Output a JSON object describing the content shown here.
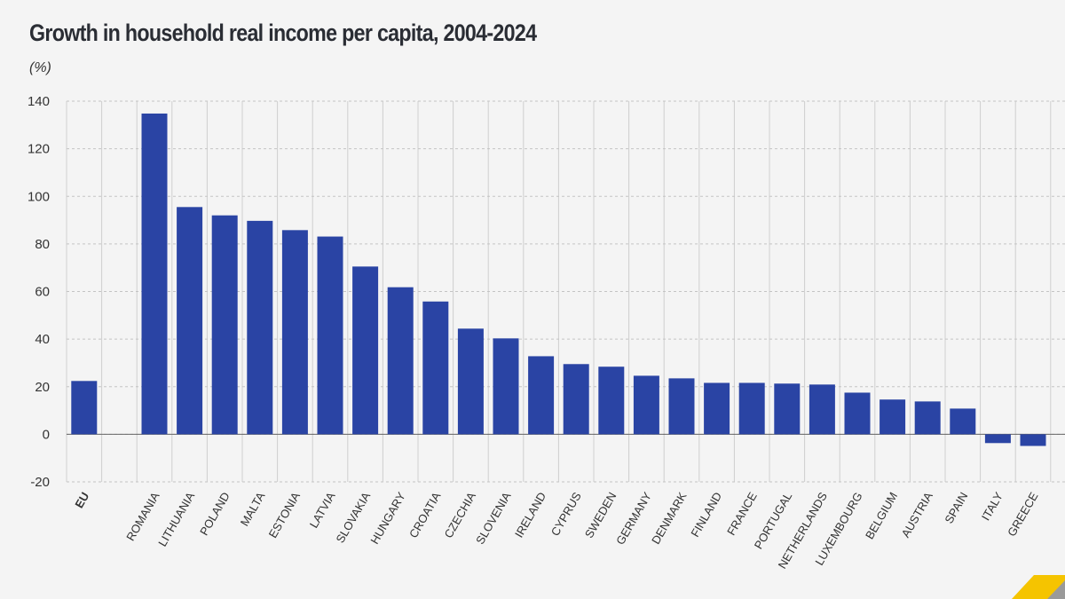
{
  "chart_data": {
    "type": "bar",
    "title": "Growth in household real income per capita, 2004-2024",
    "ylabel": "(%)",
    "xlabel": "",
    "ylim": [
      -20,
      140
    ],
    "yticks": [
      -20,
      0,
      20,
      40,
      60,
      80,
      100,
      120,
      140
    ],
    "grid": true,
    "bar_color": "#2a44a4",
    "categories": [
      "EU",
      "",
      "ROMANIA",
      "LITHUANIA",
      "POLAND",
      "MALTA",
      "ESTONIA",
      "LATVIA",
      "SLOVAKIA",
      "HUNGARY",
      "CROATIA",
      "CZECHIA",
      "SLOVENIA",
      "IRELAND",
      "CYPRUS",
      "SWEDEN",
      "GERMANY",
      "DENMARK",
      "FINLAND",
      "FRANCE",
      "PORTUGAL",
      "NETHERLANDS",
      "LUXEMBOURG",
      "BELGIUM",
      "AUSTRIA",
      "SPAIN",
      "ITALY",
      "GREECE"
    ],
    "values": [
      22.4,
      null,
      134.8,
      95.5,
      92.0,
      89.7,
      85.8,
      83.1,
      70.5,
      61.8,
      55.8,
      44.4,
      40.3,
      32.8,
      29.5,
      28.4,
      24.6,
      23.5,
      21.6,
      21.6,
      21.3,
      20.9,
      17.5,
      14.6,
      13.8,
      10.8,
      -3.7,
      -4.9
    ]
  }
}
